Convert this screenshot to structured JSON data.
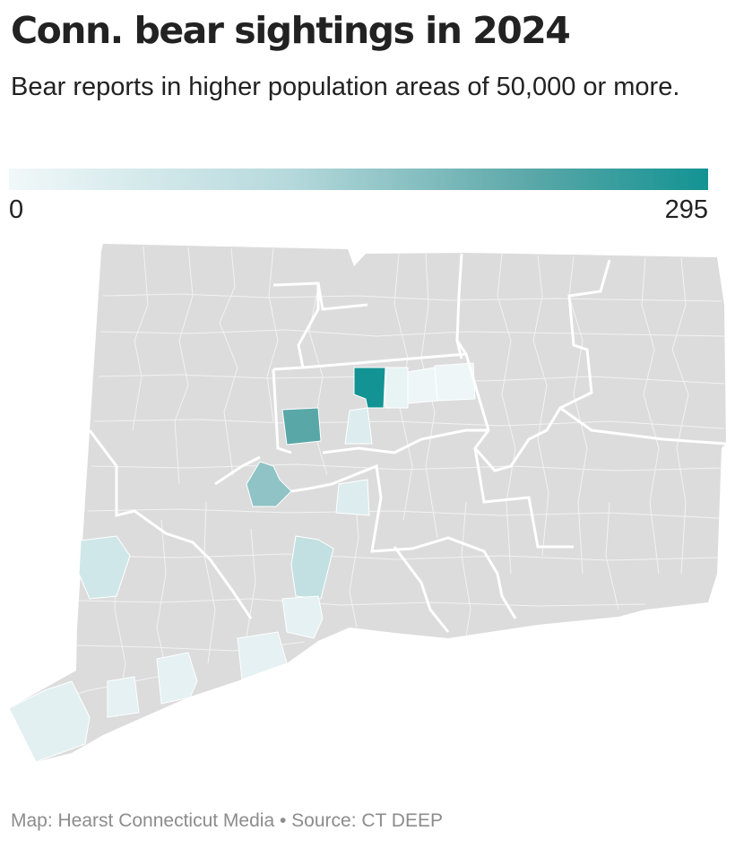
{
  "title": "Conn. bear sightings in 2024",
  "subtitle": "Bear reports in higher population areas of 50,000 or more.",
  "legend": {
    "min_label": "0",
    "max_label": "295",
    "low_color": "#f1f8f9",
    "high_color": "#139393"
  },
  "map": {
    "region": "Connecticut",
    "base_color": "#dcdcdc",
    "border_color": "#ffffff",
    "highlighted_areas": [
      {
        "id": "area-1",
        "level": 1.0
      },
      {
        "id": "area-2",
        "level": 0.7
      },
      {
        "id": "area-3",
        "level": 0.5
      },
      {
        "id": "area-4",
        "level": 0.25
      },
      {
        "id": "area-5",
        "level": 0.2
      },
      {
        "id": "area-6",
        "level": 0.15
      },
      {
        "id": "area-7",
        "level": 0.15
      },
      {
        "id": "area-8",
        "level": 0.12
      },
      {
        "id": "area-9",
        "level": 0.1
      },
      {
        "id": "area-10",
        "level": 0.1
      },
      {
        "id": "area-11",
        "level": 0.08
      },
      {
        "id": "area-12",
        "level": 0.05
      },
      {
        "id": "area-13",
        "level": 0.05
      }
    ]
  },
  "source": "Map: Hearst Connecticut Media • Source: CT DEEP"
}
